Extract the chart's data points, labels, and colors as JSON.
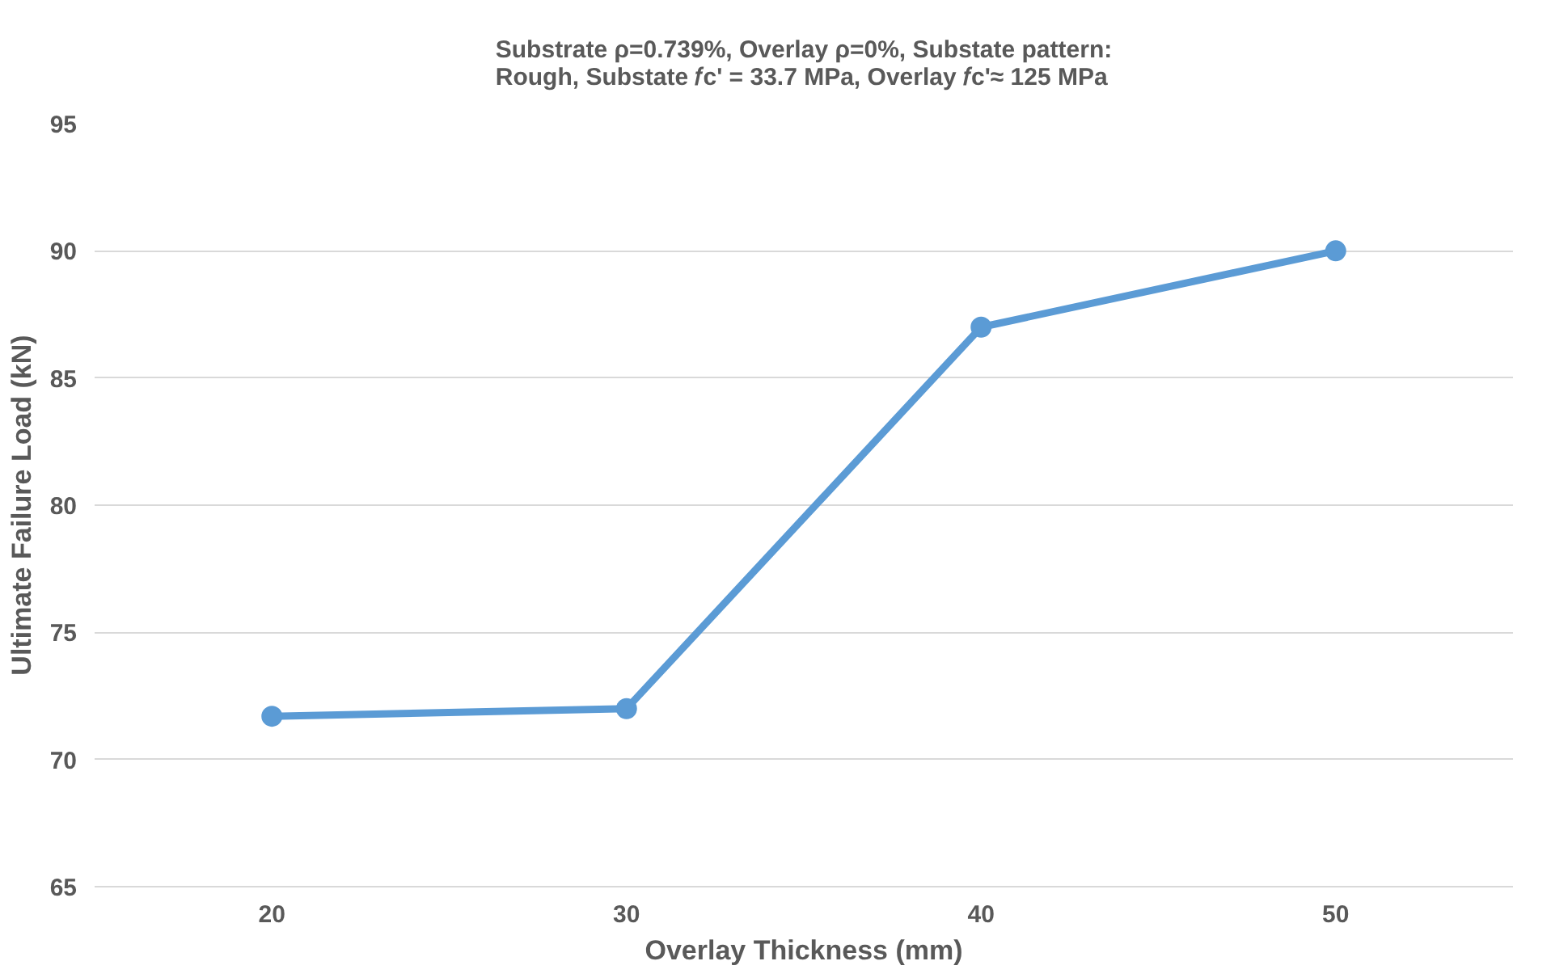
{
  "chart_data": {
    "type": "line",
    "title": "Substrate ρ=0.739%, Overlay ρ=0%, Substate pattern:\nRough, Substate 𝑓c' = 33.7 MPa, Overlay 𝑓c'≈ 125 MPa",
    "xlabel": "Overlay Thickness (mm)",
    "ylabel": "Ultimate Failure Load (kN)",
    "categories": [
      "20",
      "30",
      "40",
      "50"
    ],
    "series": [
      {
        "color": "#5b9bd5",
        "values": [
          71.7,
          72,
          87,
          90
        ]
      }
    ],
    "ylim": [
      65,
      95
    ],
    "yticks": [
      65,
      70,
      75,
      80,
      85,
      90,
      95
    ],
    "grid": "y",
    "marker": "circle",
    "line_style": "solid"
  }
}
